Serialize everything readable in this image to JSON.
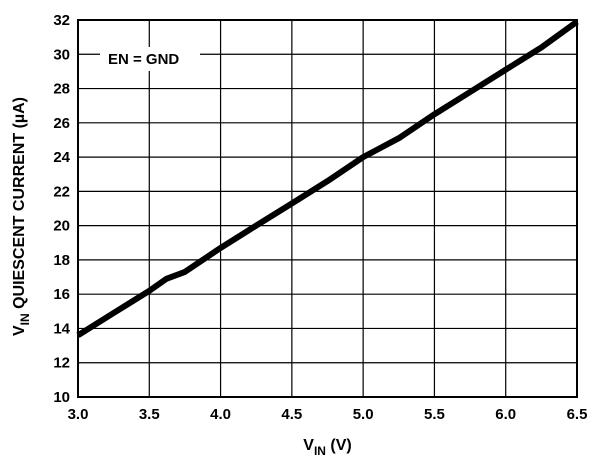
{
  "chart_data": {
    "type": "line",
    "xlabel": {
      "main": "V",
      "sub": "IN",
      "tail": " (V)"
    },
    "ylabel": {
      "main": "V",
      "sub": "IN",
      "tail": " QUIESCENT CURRENT (µA)"
    },
    "xlim": [
      3.0,
      6.5
    ],
    "ylim": [
      10,
      32
    ],
    "x_ticks": [
      "3.0",
      "3.5",
      "4.0",
      "4.5",
      "5.0",
      "5.5",
      "6.0",
      "6.5"
    ],
    "y_ticks": [
      "10",
      "12",
      "14",
      "16",
      "18",
      "20",
      "22",
      "24",
      "26",
      "28",
      "30",
      "32"
    ],
    "grid": true,
    "annotation": "EN = GND",
    "series": [
      {
        "x": [
          3.0,
          3.25,
          3.5,
          3.62,
          3.75,
          4.0,
          4.25,
          4.5,
          4.75,
          5.0,
          5.25,
          5.5,
          5.75,
          6.0,
          6.25,
          6.5
        ],
        "y": [
          13.6,
          14.9,
          16.2,
          16.9,
          17.3,
          18.7,
          20.0,
          21.3,
          22.6,
          24.0,
          25.1,
          26.5,
          27.8,
          29.1,
          30.4,
          31.9
        ]
      }
    ],
    "colors": {
      "line": "#000000",
      "grid": "#000000"
    }
  }
}
